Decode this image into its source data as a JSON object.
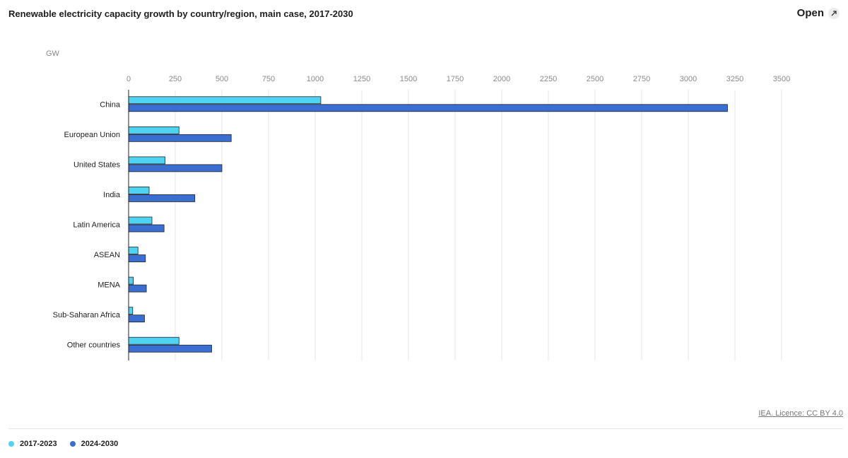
{
  "header": {
    "title": "Renewable electricity capacity growth by country/region, main case, 2017-2030",
    "open_label": "Open",
    "open_icon": "expand-arrow-icon"
  },
  "licence_text": "IEA. Licence: CC BY 4.0",
  "colors": {
    "series_2017_2023": "#4fd3f2",
    "series_2024_2030": "#3a6fd1",
    "gridline": "#e5e5e5",
    "tick_text": "#8a8a8a",
    "bar_stroke": "#222222"
  },
  "chart_data": {
    "type": "bar",
    "orientation": "horizontal",
    "unit_label": "GW",
    "categories": [
      "China",
      "European Union",
      "United States",
      "India",
      "Latin America",
      "ASEAN",
      "MENA",
      "Sub-Saharan Africa",
      "Other countries"
    ],
    "series": [
      {
        "name": "2017-2023",
        "values": [
          1030,
          270,
          195,
          110,
          125,
          50,
          25,
          22,
          270
        ]
      },
      {
        "name": "2024-2030",
        "values": [
          3210,
          550,
          500,
          355,
          190,
          90,
          95,
          85,
          445
        ]
      }
    ],
    "xlim": [
      0,
      3500
    ],
    "xticks": [
      0,
      250,
      500,
      750,
      1000,
      1250,
      1500,
      1750,
      2000,
      2250,
      2500,
      2750,
      3000,
      3250,
      3500
    ],
    "grid": true,
    "legend_position": "bottom-left"
  }
}
